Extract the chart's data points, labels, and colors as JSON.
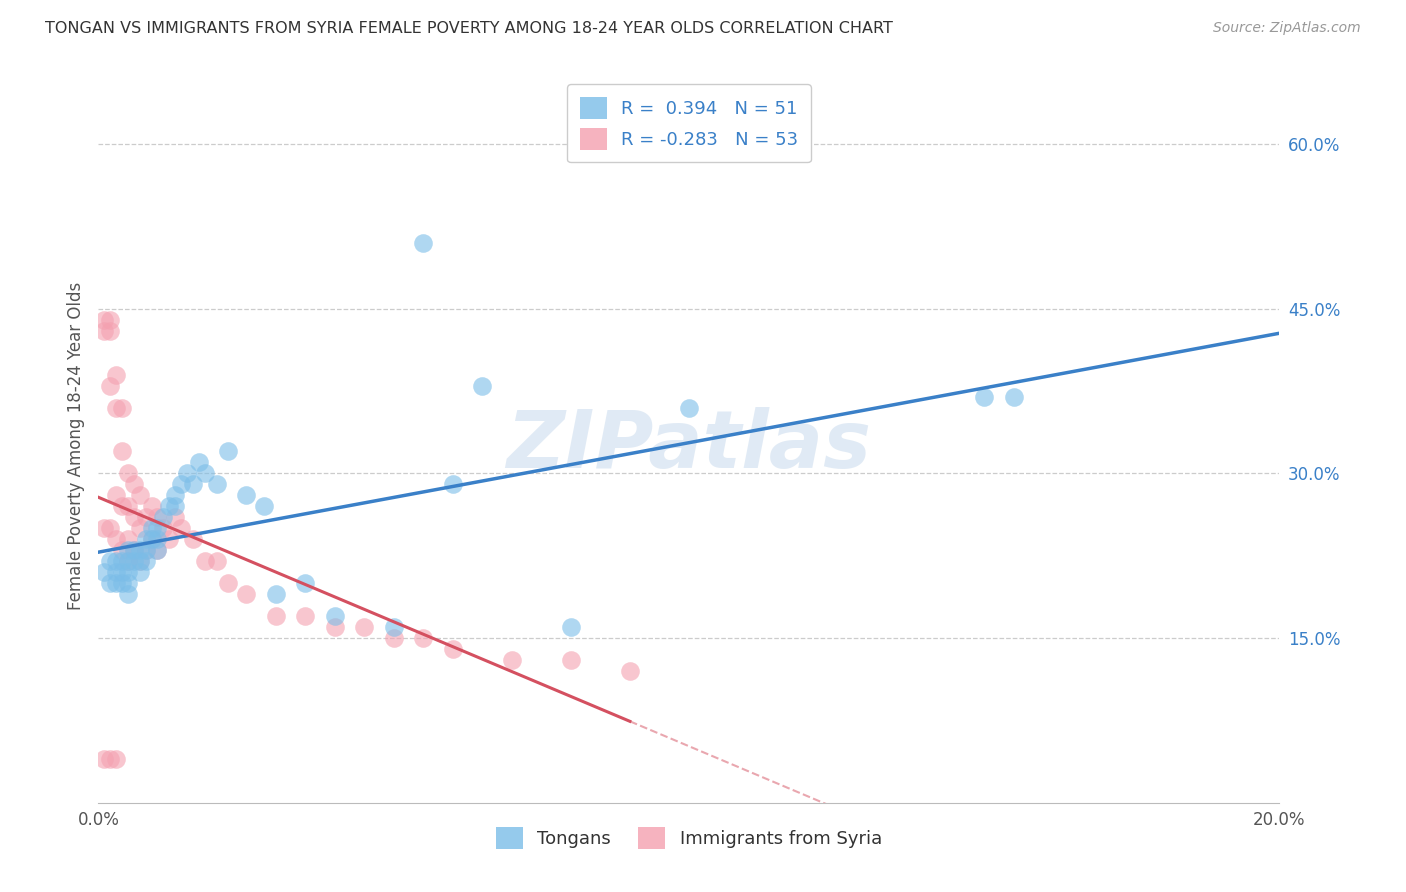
{
  "title": "TONGAN VS IMMIGRANTS FROM SYRIA FEMALE POVERTY AMONG 18-24 YEAR OLDS CORRELATION CHART",
  "source": "Source: ZipAtlas.com",
  "ylabel": "Female Poverty Among 18-24 Year Olds",
  "watermark": "ZIPatlas",
  "legend1_label": "R =  0.394   N = 51",
  "legend2_label": "R = -0.283   N = 53",
  "legend_bottom1": "Tongans",
  "legend_bottom2": "Immigrants from Syria",
  "xlim": [
    0.0,
    0.2
  ],
  "ylim": [
    0.0,
    0.65
  ],
  "x_ticks": [
    0.0,
    0.04,
    0.08,
    0.12,
    0.16,
    0.2
  ],
  "x_tick_labels": [
    "0.0%",
    "",
    "",
    "",
    "",
    "20.0%"
  ],
  "y_ticks_right": [
    0.15,
    0.3,
    0.45,
    0.6
  ],
  "y_tick_labels_right": [
    "15.0%",
    "30.0%",
    "45.0%",
    "60.0%"
  ],
  "blue_color": "#7bbde8",
  "pink_color": "#f4a0b0",
  "blue_line_color": "#3a80c8",
  "pink_line_color": "#d45060",
  "blue_x": [
    0.001,
    0.002,
    0.002,
    0.003,
    0.003,
    0.003,
    0.004,
    0.004,
    0.004,
    0.005,
    0.005,
    0.005,
    0.005,
    0.005,
    0.006,
    0.006,
    0.007,
    0.007,
    0.007,
    0.008,
    0.008,
    0.008,
    0.009,
    0.009,
    0.01,
    0.01,
    0.01,
    0.011,
    0.012,
    0.013,
    0.013,
    0.014,
    0.015,
    0.016,
    0.017,
    0.018,
    0.02,
    0.022,
    0.025,
    0.028,
    0.03,
    0.035,
    0.04,
    0.05,
    0.055,
    0.06,
    0.065,
    0.08,
    0.1,
    0.15,
    0.155
  ],
  "blue_y": [
    0.21,
    0.22,
    0.2,
    0.22,
    0.21,
    0.2,
    0.22,
    0.21,
    0.2,
    0.23,
    0.22,
    0.21,
    0.2,
    0.19,
    0.23,
    0.22,
    0.23,
    0.22,
    0.21,
    0.24,
    0.23,
    0.22,
    0.25,
    0.24,
    0.25,
    0.24,
    0.23,
    0.26,
    0.27,
    0.28,
    0.27,
    0.29,
    0.3,
    0.29,
    0.31,
    0.3,
    0.29,
    0.32,
    0.28,
    0.27,
    0.19,
    0.2,
    0.17,
    0.16,
    0.51,
    0.29,
    0.38,
    0.16,
    0.36,
    0.37,
    0.37
  ],
  "pink_x": [
    0.001,
    0.001,
    0.001,
    0.001,
    0.002,
    0.002,
    0.002,
    0.002,
    0.002,
    0.003,
    0.003,
    0.003,
    0.003,
    0.003,
    0.004,
    0.004,
    0.004,
    0.004,
    0.005,
    0.005,
    0.005,
    0.005,
    0.006,
    0.006,
    0.006,
    0.007,
    0.007,
    0.007,
    0.008,
    0.008,
    0.009,
    0.009,
    0.01,
    0.01,
    0.011,
    0.012,
    0.013,
    0.014,
    0.016,
    0.018,
    0.02,
    0.022,
    0.025,
    0.03,
    0.035,
    0.04,
    0.045,
    0.05,
    0.055,
    0.06,
    0.07,
    0.08,
    0.09
  ],
  "pink_y": [
    0.44,
    0.43,
    0.25,
    0.04,
    0.44,
    0.43,
    0.38,
    0.25,
    0.04,
    0.39,
    0.36,
    0.28,
    0.24,
    0.04,
    0.36,
    0.32,
    0.27,
    0.23,
    0.3,
    0.27,
    0.24,
    0.22,
    0.29,
    0.26,
    0.23,
    0.28,
    0.25,
    0.22,
    0.26,
    0.23,
    0.27,
    0.24,
    0.26,
    0.23,
    0.25,
    0.24,
    0.26,
    0.25,
    0.24,
    0.22,
    0.22,
    0.2,
    0.19,
    0.17,
    0.17,
    0.16,
    0.16,
    0.15,
    0.15,
    0.14,
    0.13,
    0.13,
    0.12
  ]
}
